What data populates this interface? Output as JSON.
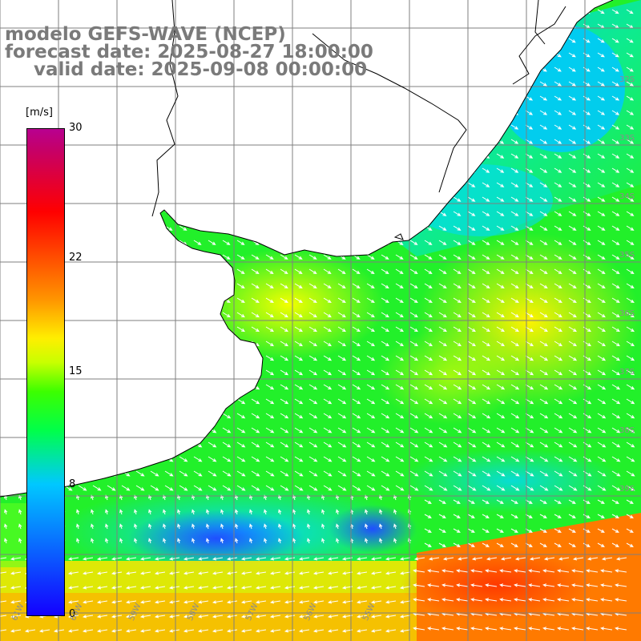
{
  "title": {
    "line1": "modelo GEFS-WAVE (NCEP)",
    "line2": "forecast date: 2025-08-27 18:00:00",
    "line3": "valid date: 2025-09-08 00:00:00"
  },
  "colorbar": {
    "unit": "[m/s]",
    "ticks": [
      "30",
      "22",
      "15",
      "8",
      "0"
    ],
    "tick_values": [
      30,
      22,
      15,
      8,
      0
    ],
    "range": [
      0,
      30
    ]
  },
  "latitude_labels": [
    "32S",
    "33S",
    "34S",
    "35S",
    "36S",
    "37S",
    "38S",
    "39S"
  ],
  "latitude_values": [
    -32,
    -33,
    -34,
    -35,
    -36,
    -37,
    -38,
    -39
  ],
  "longitude_labels": [
    "61W",
    "60W",
    "59W",
    "58W",
    "57W",
    "56W",
    "55W"
  ],
  "longitude_values": [
    -61,
    -60,
    -59,
    -58,
    -57,
    -56,
    -55
  ],
  "colors": {
    "land": "#ffffff",
    "coast": "#000000",
    "grid": "#7f7f7f",
    "vector": "#ffffff",
    "title": "#7a7a7a"
  }
}
